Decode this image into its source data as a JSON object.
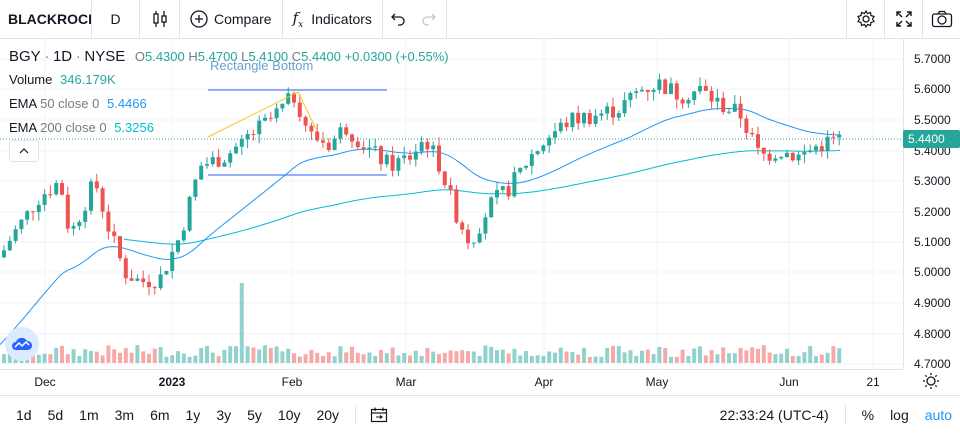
{
  "toolbar": {
    "symbol": "BLACKROCK",
    "interval": "D",
    "compare_label": "Compare",
    "indicators_label": "Indicators"
  },
  "legend": {
    "symbol": "BGY",
    "interval": "1D",
    "exchange": "NYSE",
    "o_label": "O",
    "o_value": "5.4300",
    "h_label": "H",
    "h_value": "5.4700",
    "l_label": "L",
    "l_value": "5.4100",
    "c_label": "C",
    "c_value": "5.4400",
    "change": "+0.0300 (+0.55%)",
    "volume_label": "Volume",
    "volume_value": "346.179K",
    "ema50_label": "EMA",
    "ema50_params": "50 close 0",
    "ema50_value": "5.4466",
    "ema200_label": "EMA",
    "ema200_params": "200 close 0",
    "ema200_value": "5.3256"
  },
  "drawing": {
    "label": "Rectangle Bottom"
  },
  "price_scale": {
    "ticks": [
      "5.7000",
      "5.6000",
      "5.5000",
      "5.4000",
      "5.3000",
      "5.2000",
      "5.1000",
      "5.0000",
      "4.9000",
      "4.8000",
      "4.7000"
    ],
    "last_price": "5.4400"
  },
  "time_axis": {
    "labels": [
      "Dec",
      "2023",
      "Feb",
      "Mar",
      "Apr",
      "May",
      "Jun",
      "21"
    ]
  },
  "bottom_bar": {
    "ranges": [
      "1d",
      "5d",
      "1m",
      "3m",
      "6m",
      "1y",
      "3y",
      "5y",
      "10y",
      "20y"
    ],
    "clock": "22:33:24 (UTC-4)",
    "percent": "%",
    "log": "log",
    "auto": "auto"
  },
  "colors": {
    "up": "#26a69a",
    "down": "#ef5350",
    "ema50": "#2196f3",
    "ema200": "#00bcd4"
  },
  "icons": [
    "candles-icon",
    "plus-circle-icon",
    "fx-icon",
    "undo-icon",
    "redo-icon",
    "gear-icon",
    "fullscreen-icon",
    "camera-icon",
    "chevron-up-icon",
    "calendar-range-icon",
    "settings-sun-icon"
  ]
}
